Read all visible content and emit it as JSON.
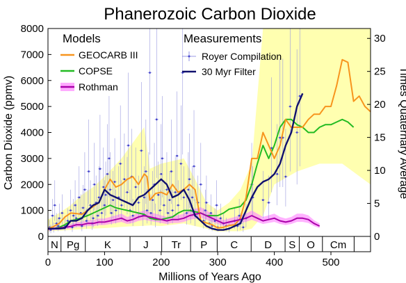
{
  "chart_data": {
    "type": "line",
    "title": "Phanerozoic Carbon Dioxide",
    "xlabel": "Millions of Years Ago",
    "ylabel": "Carbon Dioxide (ppmv)",
    "ylabel_right": "Times Quaternary Average",
    "xlim": [
      0,
      570
    ],
    "ylim": [
      0,
      8000
    ],
    "ylim_right": [
      0,
      31.5
    ],
    "x_ticks": [
      0,
      100,
      200,
      300,
      400,
      500
    ],
    "y_ticks": [
      0,
      1000,
      2000,
      3000,
      4000,
      5000,
      6000,
      7000,
      8000
    ],
    "y_ticks_right": [
      0,
      5,
      10,
      15,
      20,
      25,
      30
    ],
    "legend_headings": {
      "models": "Models",
      "measurements": "Measurements"
    },
    "legend_position": "top-left",
    "colors": {
      "geocarb": "#f7941d",
      "copse": "#22bb22",
      "rothman": "#aa00aa",
      "rothman_band": "#ff88ff",
      "royer": "#7777dd",
      "filter": "#10106e",
      "uncertainty_band": "#ffffb0"
    },
    "periods": [
      {
        "label": "N",
        "start": 0,
        "end": 23
      },
      {
        "label": "Pg",
        "start": 23,
        "end": 66
      },
      {
        "label": "K",
        "start": 66,
        "end": 145
      },
      {
        "label": "J",
        "start": 145,
        "end": 201
      },
      {
        "label": "Tr",
        "start": 201,
        "end": 252
      },
      {
        "label": "P",
        "start": 252,
        "end": 299
      },
      {
        "label": "C",
        "start": 299,
        "end": 359
      },
      {
        "label": "D",
        "start": 359,
        "end": 419
      },
      {
        "label": "S",
        "start": 419,
        "end": 444
      },
      {
        "label": "O",
        "start": 444,
        "end": 485
      },
      {
        "label": "Cm",
        "start": 485,
        "end": 541
      }
    ],
    "uncertainty_band": {
      "upper": [
        [
          0,
          650
        ],
        [
          20,
          900
        ],
        [
          40,
          1200
        ],
        [
          60,
          1600
        ],
        [
          80,
          1900
        ],
        [
          100,
          2300
        ],
        [
          130,
          3000
        ],
        [
          150,
          3600
        ],
        [
          170,
          4200
        ],
        [
          180,
          2600
        ],
        [
          200,
          2800
        ],
        [
          220,
          2900
        ],
        [
          240,
          3000
        ],
        [
          260,
          2200
        ],
        [
          280,
          1300
        ],
        [
          300,
          1000
        ],
        [
          320,
          1300
        ],
        [
          340,
          1800
        ],
        [
          360,
          2800
        ],
        [
          380,
          8000
        ],
        [
          570,
          8000
        ]
      ],
      "lower": [
        [
          570,
          2000
        ],
        [
          520,
          2800
        ],
        [
          480,
          2800
        ],
        [
          440,
          2500
        ],
        [
          400,
          2000
        ],
        [
          380,
          800
        ],
        [
          360,
          300
        ],
        [
          340,
          200
        ],
        [
          320,
          200
        ],
        [
          300,
          180
        ],
        [
          280,
          300
        ],
        [
          260,
          400
        ],
        [
          240,
          500
        ],
        [
          220,
          450
        ],
        [
          200,
          400
        ],
        [
          180,
          420
        ],
        [
          160,
          400
        ],
        [
          140,
          380
        ],
        [
          120,
          350
        ],
        [
          100,
          320
        ],
        [
          80,
          300
        ],
        [
          60,
          280
        ],
        [
          40,
          250
        ],
        [
          20,
          220
        ],
        [
          0,
          200
        ]
      ]
    },
    "series": [
      {
        "name": "GEOCARB III",
        "x": [
          0,
          10,
          20,
          30,
          40,
          50,
          60,
          70,
          80,
          90,
          100,
          110,
          120,
          130,
          140,
          150,
          160,
          170,
          175,
          180,
          190,
          200,
          210,
          220,
          230,
          240,
          250,
          260,
          270,
          280,
          290,
          300,
          310,
          320,
          330,
          340,
          350,
          360,
          370,
          380,
          390,
          400,
          410,
          420,
          430,
          440,
          450,
          460,
          470,
          480,
          490,
          500,
          510,
          520,
          530,
          540,
          550,
          560,
          570
        ],
        "values": [
          300,
          380,
          500,
          750,
          900,
          880,
          850,
          1000,
          1150,
          1300,
          1800,
          2200,
          1900,
          2000,
          2200,
          2300,
          2000,
          2400,
          2300,
          1400,
          1650,
          1700,
          1600,
          2000,
          1700,
          1800,
          2000,
          1800,
          600,
          520,
          450,
          330,
          350,
          420,
          450,
          700,
          1500,
          3000,
          3000,
          4000,
          3500,
          3000,
          3500,
          4500,
          4200,
          4200,
          4200,
          4500,
          4700,
          4700,
          5000,
          5000,
          5800,
          6800,
          6700,
          5200,
          5400,
          5000,
          4800
        ]
      },
      {
        "name": "COPSE",
        "x": [
          0,
          10,
          20,
          30,
          40,
          50,
          60,
          70,
          80,
          90,
          100,
          110,
          120,
          130,
          140,
          150,
          160,
          170,
          180,
          190,
          200,
          210,
          220,
          230,
          240,
          250,
          260,
          270,
          280,
          290,
          300,
          310,
          320,
          330,
          340,
          350,
          360,
          370,
          380,
          390,
          400,
          410,
          420,
          430,
          440,
          450,
          460,
          470,
          480,
          490,
          500,
          510,
          520,
          530,
          540
        ],
        "values": [
          280,
          300,
          350,
          450,
          600,
          650,
          720,
          800,
          900,
          1000,
          1100,
          1200,
          1100,
          1050,
          1000,
          950,
          900,
          850,
          700,
          650,
          650,
          700,
          750,
          900,
          1000,
          1000,
          950,
          900,
          800,
          800,
          800,
          900,
          1050,
          1100,
          1150,
          1400,
          2000,
          2800,
          3500,
          3000,
          3500,
          4200,
          4500,
          4500,
          4300,
          4200,
          4000,
          4000,
          4200,
          4300,
          4300,
          4400,
          4500,
          4400,
          4200
        ]
      },
      {
        "name": "Rothman",
        "x": [
          0,
          10,
          20,
          30,
          40,
          50,
          60,
          70,
          80,
          90,
          100,
          110,
          120,
          130,
          140,
          150,
          160,
          170,
          180,
          190,
          200,
          210,
          220,
          230,
          240,
          250,
          260,
          270,
          280,
          290,
          300,
          310,
          320,
          330,
          340,
          350,
          360,
          370,
          380,
          390,
          400,
          410,
          420,
          430,
          440,
          450,
          460,
          470,
          480
        ],
        "values": [
          280,
          300,
          320,
          350,
          380,
          450,
          450,
          500,
          500,
          550,
          550,
          600,
          650,
          700,
          600,
          650,
          750,
          800,
          750,
          700,
          650,
          600,
          650,
          650,
          700,
          800,
          850,
          900,
          800,
          700,
          600,
          500,
          550,
          600,
          650,
          700,
          800,
          700,
          600,
          650,
          700,
          600,
          550,
          600,
          700,
          700,
          650,
          500,
          400
        ]
      },
      {
        "name": "30 Myr Filter",
        "x": [
          0,
          10,
          20,
          30,
          40,
          50,
          60,
          70,
          80,
          90,
          100,
          110,
          120,
          130,
          140,
          150,
          160,
          170,
          180,
          190,
          200,
          210,
          220,
          230,
          240,
          250,
          260,
          270,
          280,
          290,
          300,
          310,
          320,
          330,
          340,
          350,
          360,
          370,
          380,
          390,
          400,
          410,
          420,
          430,
          440,
          450
        ],
        "values": [
          300,
          300,
          300,
          320,
          600,
          600,
          700,
          1000,
          1200,
          1300,
          1800,
          1600,
          1500,
          1400,
          1300,
          1200,
          1500,
          1600,
          1800,
          2000,
          2200,
          2000,
          1500,
          1600,
          1800,
          1400,
          800,
          600,
          400,
          300,
          250,
          250,
          300,
          400,
          500,
          1000,
          1500,
          1900,
          2100,
          2200,
          2400,
          2800,
          3500,
          4000,
          5000,
          5500
        ]
      },
      {
        "name": "Royer Compilation",
        "points": [
          [
            3,
            350
          ],
          [
            5,
            250
          ],
          [
            8,
            800
          ],
          [
            10,
            300
          ],
          [
            12,
            1200
          ],
          [
            15,
            500
          ],
          [
            18,
            400
          ],
          [
            20,
            700
          ],
          [
            25,
            900
          ],
          [
            30,
            400
          ],
          [
            35,
            600
          ],
          [
            40,
            1000
          ],
          [
            43,
            350
          ],
          [
            45,
            800
          ],
          [
            48,
            1200
          ],
          [
            50,
            700
          ],
          [
            55,
            1500
          ],
          [
            58,
            900
          ],
          [
            60,
            400
          ],
          [
            62,
            1100
          ],
          [
            65,
            1800
          ],
          [
            68,
            600
          ],
          [
            70,
            1000
          ],
          [
            72,
            2500
          ],
          [
            75,
            1200
          ],
          [
            78,
            500
          ],
          [
            80,
            700
          ],
          [
            82,
            2000
          ],
          [
            85,
            1300
          ],
          [
            88,
            800
          ],
          [
            90,
            1500
          ],
          [
            92,
            2600
          ],
          [
            95,
            900
          ],
          [
            98,
            1900
          ],
          [
            100,
            1200
          ],
          [
            102,
            1600
          ],
          [
            105,
            2400
          ],
          [
            108,
            3000
          ],
          [
            110,
            1800
          ],
          [
            112,
            900
          ],
          [
            115,
            1400
          ],
          [
            118,
            2100
          ],
          [
            120,
            1000
          ],
          [
            125,
            1500
          ],
          [
            128,
            2800
          ],
          [
            130,
            1200
          ],
          [
            135,
            2200
          ],
          [
            140,
            1700
          ],
          [
            142,
            3500
          ],
          [
            145,
            1000
          ],
          [
            148,
            2300
          ],
          [
            150,
            800
          ],
          [
            155,
            1900
          ],
          [
            160,
            1300
          ],
          [
            165,
            3300
          ],
          [
            168,
            800
          ],
          [
            170,
            1500
          ],
          [
            173,
            2500
          ],
          [
            175,
            1000
          ],
          [
            178,
            1800
          ],
          [
            180,
            6300
          ],
          [
            182,
            900
          ],
          [
            185,
            1400
          ],
          [
            188,
            2000
          ],
          [
            190,
            700
          ],
          [
            192,
            4500
          ],
          [
            195,
            1600
          ],
          [
            198,
            1000
          ],
          [
            200,
            2400
          ],
          [
            202,
            3000
          ],
          [
            205,
            1200
          ],
          [
            210,
            1800
          ],
          [
            212,
            900
          ],
          [
            215,
            1400
          ],
          [
            218,
            2500
          ],
          [
            220,
            1000
          ],
          [
            225,
            1700
          ],
          [
            228,
            3100
          ],
          [
            230,
            1200
          ],
          [
            235,
            2800
          ],
          [
            238,
            6300
          ],
          [
            240,
            1500
          ],
          [
            245,
            900
          ],
          [
            248,
            1800
          ],
          [
            250,
            2200
          ],
          [
            252,
            1000
          ],
          [
            255,
            1500
          ],
          [
            258,
            2700
          ],
          [
            260,
            800
          ],
          [
            265,
            1300
          ],
          [
            270,
            2000
          ],
          [
            275,
            600
          ],
          [
            278,
            1000
          ],
          [
            280,
            1300
          ],
          [
            285,
            500
          ],
          [
            288,
            900
          ],
          [
            290,
            400
          ],
          [
            295,
            600
          ],
          [
            298,
            1200
          ],
          [
            300,
            350
          ],
          [
            305,
            700
          ],
          [
            310,
            500
          ],
          [
            315,
            400
          ],
          [
            320,
            300
          ],
          [
            330,
            600
          ],
          [
            335,
            400
          ],
          [
            338,
            800
          ],
          [
            340,
            500
          ],
          [
            345,
            350
          ],
          [
            350,
            700
          ],
          [
            360,
            2000
          ],
          [
            362,
            1500
          ],
          [
            380,
            1400
          ],
          [
            390,
            1300
          ],
          [
            395,
            3400
          ],
          [
            405,
            2400
          ],
          [
            410,
            3800
          ],
          [
            415,
            3800
          ],
          [
            420,
            2300
          ],
          [
            428,
            5000
          ],
          [
            440,
            4000
          ],
          [
            445,
            5400
          ]
        ]
      }
    ]
  }
}
